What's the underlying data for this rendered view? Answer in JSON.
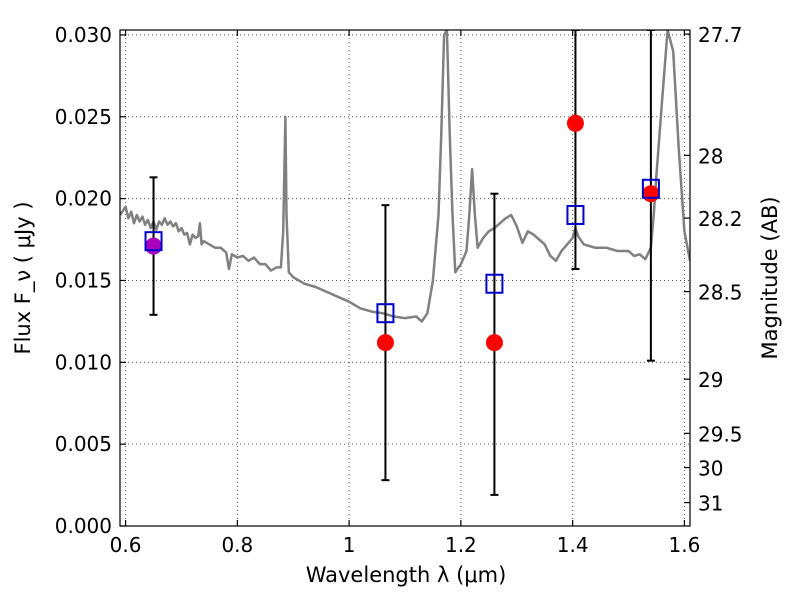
{
  "chart_data": {
    "type": "scatter",
    "xlabel": "Wavelength  λ (μm)",
    "ylabel": "Flux  F_ν  ( μJy )",
    "y2label": "Magnitude (AB)",
    "xlim": [
      0.59,
      1.61
    ],
    "ylim": [
      0.0,
      0.0303
    ],
    "grid": true,
    "x_ticks": [
      0.6,
      0.8,
      1.0,
      1.2,
      1.4,
      1.6
    ],
    "x_tick_labels": [
      "0.6",
      "0.8",
      "1",
      "1.2",
      "1.4",
      "1.6"
    ],
    "y_ticks": [
      0.0,
      0.005,
      0.01,
      0.015,
      0.02,
      0.025,
      0.03
    ],
    "y_tick_labels": [
      "0.000",
      "0.005",
      "0.010",
      "0.015",
      "0.020",
      "0.025",
      "0.030"
    ],
    "y2_ticks": [
      {
        "flux": 0.03005,
        "label": "27.7"
      },
      {
        "flux": 0.02264,
        "label": "28"
      },
      {
        "flux": 0.01881,
        "label": "28.2"
      },
      {
        "flux": 0.01432,
        "label": "28.5"
      },
      {
        "flux": 0.00897,
        "label": "29"
      },
      {
        "flux": 0.00566,
        "label": "29.5"
      },
      {
        "flux": 0.00357,
        "label": "30"
      },
      {
        "flux": 0.00143,
        "label": "31"
      }
    ],
    "series": [
      {
        "type": "line",
        "color": "#808080",
        "x": [
          0.59,
          0.6,
          0.605,
          0.61,
          0.615,
          0.62,
          0.625,
          0.63,
          0.635,
          0.64,
          0.645,
          0.65,
          0.655,
          0.66,
          0.665,
          0.67,
          0.675,
          0.68,
          0.685,
          0.69,
          0.695,
          0.7,
          0.705,
          0.71,
          0.715,
          0.72,
          0.725,
          0.73,
          0.733,
          0.736,
          0.74,
          0.75,
          0.76,
          0.77,
          0.78,
          0.785,
          0.79,
          0.8,
          0.81,
          0.82,
          0.83,
          0.84,
          0.85,
          0.86,
          0.87,
          0.878,
          0.882,
          0.886,
          0.888,
          0.892,
          0.9,
          0.92,
          0.94,
          0.96,
          0.98,
          1.0,
          1.02,
          1.04,
          1.06,
          1.08,
          1.1,
          1.12,
          1.13,
          1.14,
          1.15,
          1.16,
          1.165,
          1.17,
          1.175,
          1.18,
          1.185,
          1.19,
          1.2,
          1.21,
          1.215,
          1.22,
          1.225,
          1.23,
          1.24,
          1.25,
          1.26,
          1.27,
          1.28,
          1.29,
          1.3,
          1.31,
          1.32,
          1.33,
          1.34,
          1.35,
          1.36,
          1.37,
          1.38,
          1.39,
          1.4,
          1.405,
          1.41,
          1.42,
          1.44,
          1.46,
          1.48,
          1.5,
          1.51,
          1.52,
          1.53,
          1.54,
          1.545,
          1.55,
          1.56,
          1.57,
          1.58,
          1.59,
          1.6,
          1.61
        ],
        "y": [
          0.019,
          0.0195,
          0.0188,
          0.0192,
          0.0185,
          0.019,
          0.0186,
          0.0189,
          0.0184,
          0.0187,
          0.0182,
          0.0186,
          0.0181,
          0.0186,
          0.0184,
          0.0188,
          0.0184,
          0.0186,
          0.0183,
          0.0185,
          0.018,
          0.0182,
          0.0178,
          0.0179,
          0.0172,
          0.0178,
          0.0176,
          0.0177,
          0.0185,
          0.0172,
          0.0174,
          0.0172,
          0.017,
          0.017,
          0.0167,
          0.0157,
          0.0166,
          0.0164,
          0.0165,
          0.0162,
          0.0164,
          0.016,
          0.016,
          0.0156,
          0.0158,
          0.0158,
          0.018,
          0.025,
          0.019,
          0.0155,
          0.0152,
          0.0148,
          0.0146,
          0.0143,
          0.014,
          0.0137,
          0.0133,
          0.0131,
          0.013,
          0.0128,
          0.0127,
          0.0128,
          0.0125,
          0.013,
          0.015,
          0.019,
          0.024,
          0.03,
          0.0303,
          0.024,
          0.019,
          0.0155,
          0.016,
          0.0168,
          0.019,
          0.0218,
          0.019,
          0.017,
          0.0176,
          0.018,
          0.0182,
          0.0185,
          0.0188,
          0.019,
          0.0183,
          0.0173,
          0.018,
          0.0178,
          0.0175,
          0.0172,
          0.0165,
          0.0162,
          0.0168,
          0.0172,
          0.0176,
          0.0182,
          0.0177,
          0.0172,
          0.017,
          0.017,
          0.0168,
          0.0168,
          0.0165,
          0.0166,
          0.0163,
          0.017,
          0.019,
          0.0215,
          0.026,
          0.0303,
          0.029,
          0.023,
          0.018,
          0.0162
        ]
      },
      {
        "type": "scatter",
        "marker": "open-square",
        "color": "#0000cc",
        "x": [
          0.65,
          1.065,
          1.26,
          1.405,
          1.54
        ],
        "y": [
          0.0174,
          0.013,
          0.0148,
          0.019,
          0.0206
        ]
      },
      {
        "type": "scatter",
        "marker": "filled-circle",
        "color": "#ff0000",
        "highlight_color": "#aa00bb",
        "x": [
          0.65,
          1.065,
          1.26,
          1.405,
          1.54
        ],
        "y": [
          0.0171,
          0.0112,
          0.0112,
          0.0246,
          0.0203
        ]
      },
      {
        "type": "errorbar",
        "color": "#000000",
        "x": [
          0.65,
          1.065,
          1.26,
          1.405,
          1.54
        ],
        "ylow": [
          0.0129,
          0.0028,
          0.0019,
          0.0157,
          0.0101
        ],
        "yhigh": [
          0.0213,
          0.0196,
          0.0203,
          0.0303,
          0.0303
        ]
      }
    ]
  }
}
